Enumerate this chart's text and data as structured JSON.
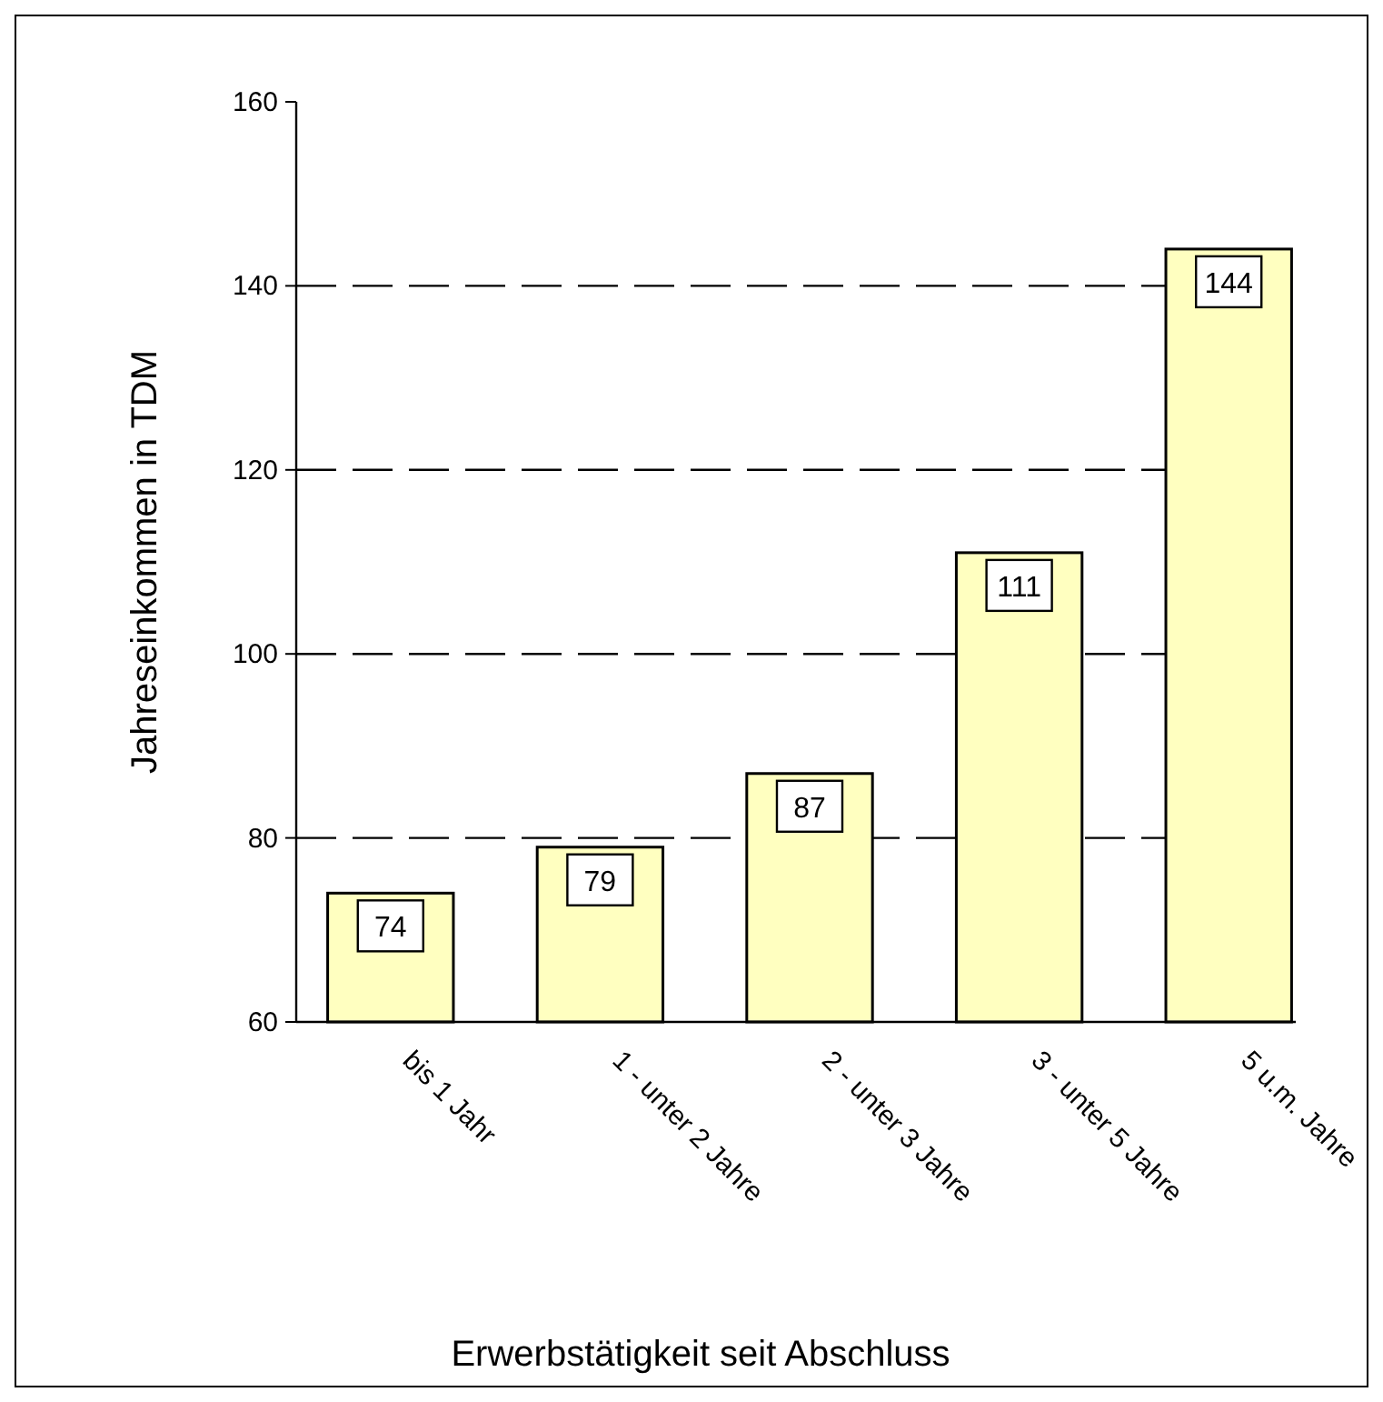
{
  "chart_data": {
    "type": "bar",
    "xlabel": "Erwerbstätigkeit seit Abschluss",
    "ylabel": "Jahreseinkommen in TDM",
    "categories": [
      "bis 1 Jahr",
      "1 - unter 2 Jahre",
      "2 - unter 3 Jahre",
      "3 - unter 5 Jahre",
      "5 u.m. Jahre"
    ],
    "values": [
      74,
      79,
      87,
      111,
      144
    ],
    "color": "#ffffc0",
    "ylim": [
      60,
      160
    ],
    "yticks": [
      60,
      80,
      100,
      120,
      140,
      160
    ],
    "grid": "y",
    "data_labels": true
  }
}
